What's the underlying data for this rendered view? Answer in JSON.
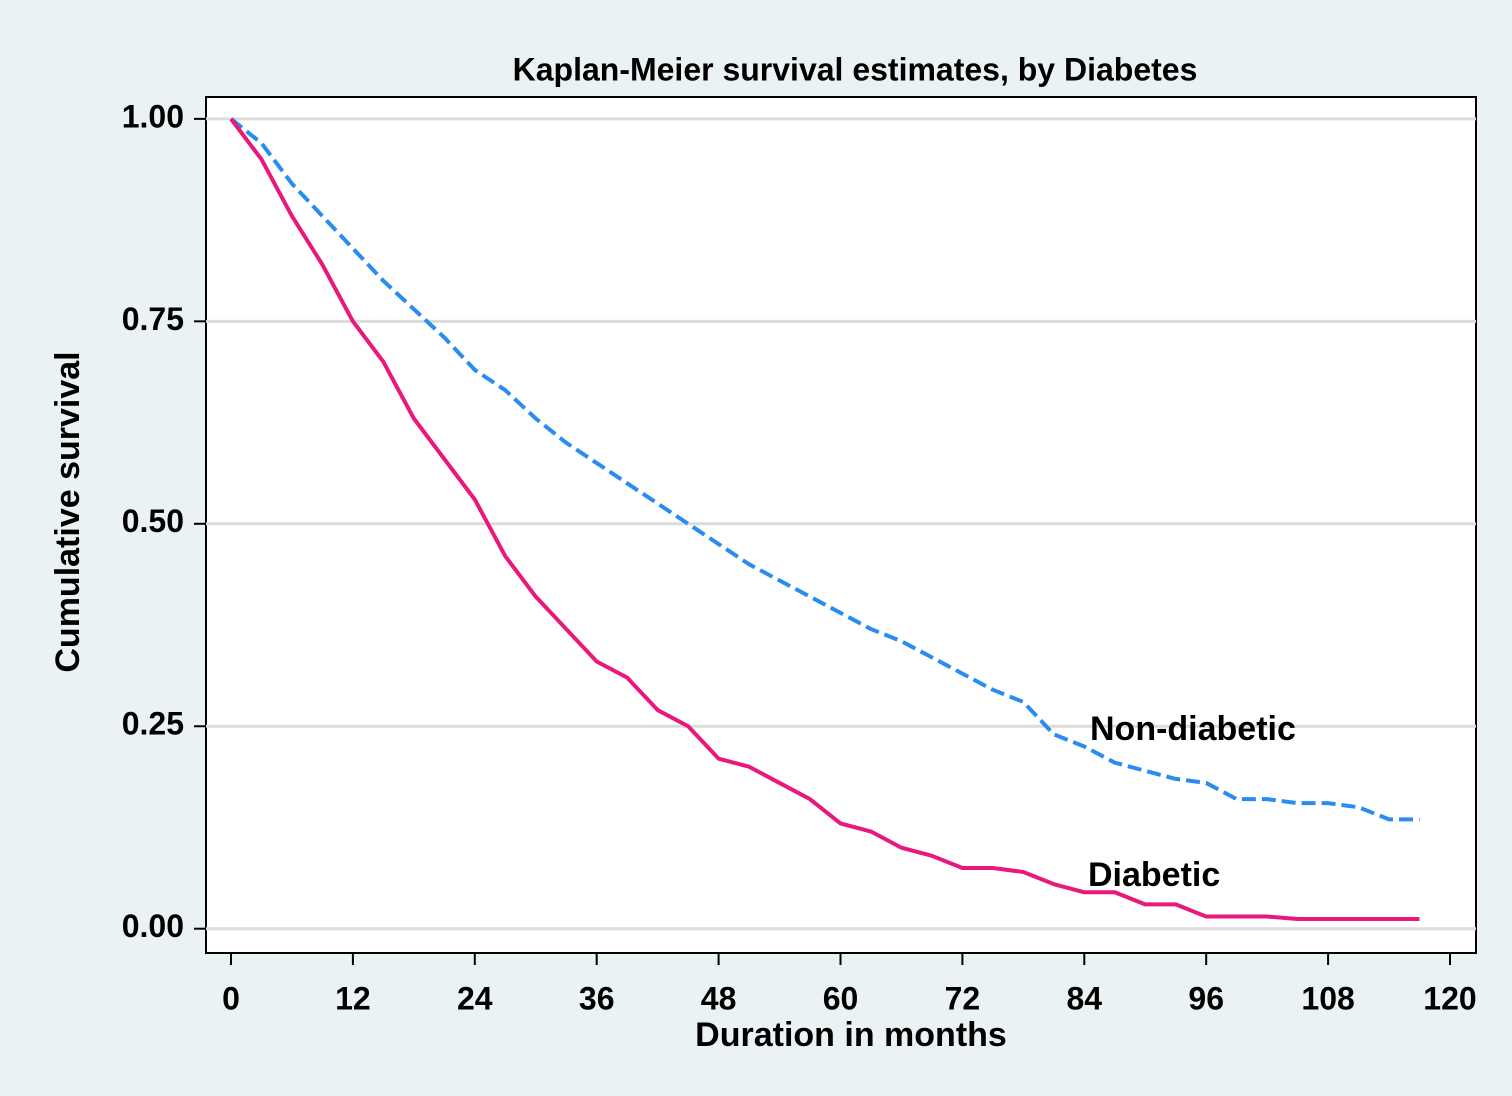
{
  "chart_data": {
    "type": "line",
    "title": "Kaplan-Meier survival estimates, by Diabetes",
    "xlabel": "Duration in months",
    "ylabel": "Cumulative survival",
    "x": [
      0,
      3,
      6,
      9,
      12,
      15,
      18,
      21,
      24,
      27,
      30,
      33,
      36,
      39,
      42,
      45,
      48,
      51,
      54,
      57,
      60,
      63,
      66,
      69,
      72,
      75,
      78,
      81,
      84,
      87,
      90,
      93,
      96,
      99,
      102,
      105,
      108,
      111,
      114,
      117
    ],
    "series": [
      {
        "name": "Non-diabetic",
        "color": "#2a8cf0",
        "dashed": true,
        "values": [
          1.0,
          0.97,
          0.92,
          0.88,
          0.84,
          0.8,
          0.765,
          0.73,
          0.69,
          0.665,
          0.63,
          0.6,
          0.575,
          0.55,
          0.525,
          0.5,
          0.475,
          0.45,
          0.43,
          0.41,
          0.39,
          0.37,
          0.355,
          0.335,
          0.315,
          0.295,
          0.28,
          0.24,
          0.225,
          0.205,
          0.195,
          0.185,
          0.18,
          0.16,
          0.16,
          0.155,
          0.155,
          0.15,
          0.135,
          0.135
        ]
      },
      {
        "name": "Diabetic",
        "color": "#e8197a",
        "dashed": false,
        "values": [
          1.0,
          0.95,
          0.88,
          0.82,
          0.75,
          0.7,
          0.63,
          0.58,
          0.53,
          0.46,
          0.41,
          0.37,
          0.33,
          0.31,
          0.27,
          0.25,
          0.21,
          0.2,
          0.18,
          0.16,
          0.13,
          0.12,
          0.1,
          0.09,
          0.075,
          0.075,
          0.07,
          0.055,
          0.045,
          0.045,
          0.03,
          0.03,
          0.015,
          0.015,
          0.015,
          0.012,
          0.012,
          0.012,
          0.012,
          0.012
        ]
      }
    ],
    "xlim": [
      -2.46,
      122.56
    ],
    "ylim": [
      -0.03,
      1.027
    ],
    "xticks": [
      0,
      12,
      24,
      36,
      48,
      60,
      72,
      84,
      96,
      108,
      120
    ],
    "yticks": [
      {
        "value": 0,
        "label": "0.00"
      },
      {
        "value": 0.25,
        "label": "0.25"
      },
      {
        "value": 0.5,
        "label": "0.50"
      },
      {
        "value": 0.75,
        "label": "0.75"
      },
      {
        "value": 1,
        "label": "1.00"
      }
    ],
    "grid": true
  }
}
